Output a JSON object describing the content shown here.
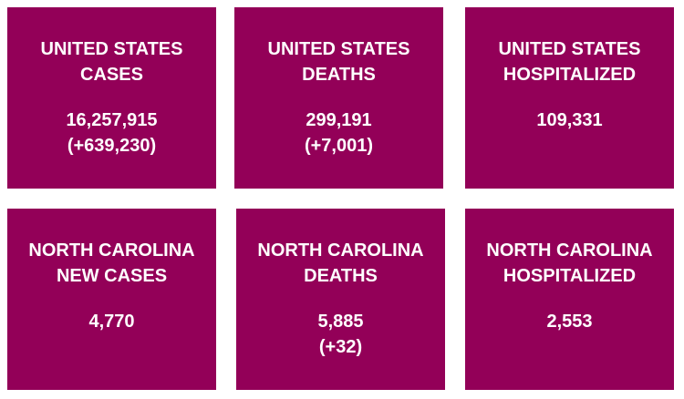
{
  "tiles": [
    {
      "title": [
        "UNITED STATES",
        "CASES"
      ],
      "value": "16,257,915",
      "change": "(+639,230)"
    },
    {
      "title": [
        "UNITED STATES",
        "DEATHS"
      ],
      "value": "299,191",
      "change": "(+7,001)"
    },
    {
      "title": [
        "UNITED STATES",
        "HOSPITALIZED"
      ],
      "value": "109,331"
    },
    {
      "title": [
        "NORTH CAROLINA",
        "NEW CASES"
      ],
      "value": "4,770"
    },
    {
      "title": [
        "NORTH CAROLINA",
        "DEATHS"
      ],
      "value": "5,885",
      "change": "(+32)"
    },
    {
      "title": [
        "NORTH CAROLINA",
        "HOSPITALIZED"
      ],
      "value": "2,553"
    }
  ]
}
